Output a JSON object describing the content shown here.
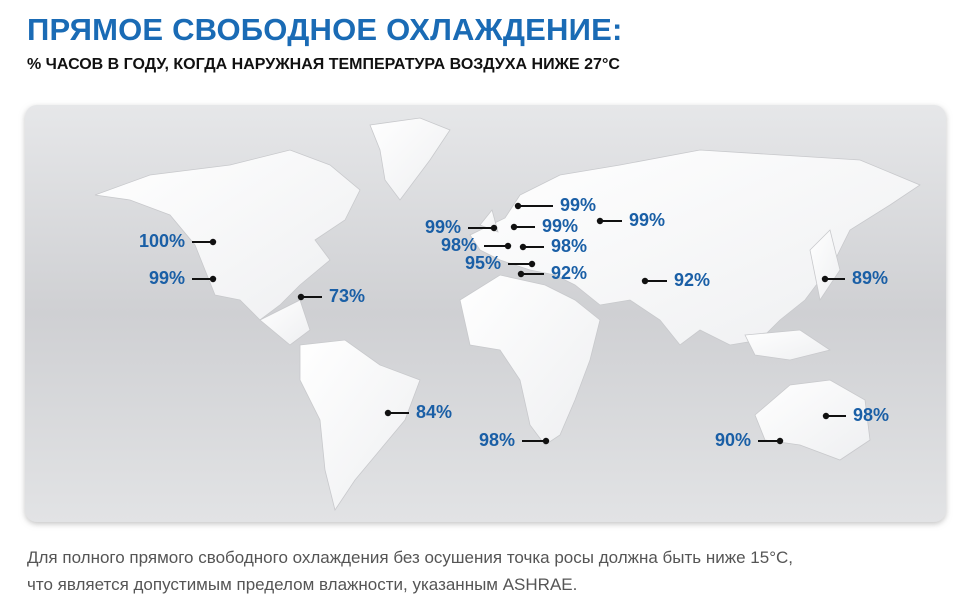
{
  "header": {
    "title": "ПРЯМОЕ СВОБОДНОЕ ОХЛАЖДЕНИЕ:",
    "subtitle": "% ЧАСОВ В ГОДУ, КОГДА НАРУЖНАЯ ТЕМПЕРАТУРА ВОЗДУХА НИЖЕ 27°C"
  },
  "markers": [
    {
      "label": "100%"
    },
    {
      "label": "99%"
    },
    {
      "label": "73%"
    },
    {
      "label": "84%"
    },
    {
      "label": "98%"
    },
    {
      "label": "99%"
    },
    {
      "label": "99%"
    },
    {
      "label": "99%"
    },
    {
      "label": "98%"
    },
    {
      "label": "98%"
    },
    {
      "label": "95%"
    },
    {
      "label": "92%"
    },
    {
      "label": "99%"
    },
    {
      "label": "92%"
    },
    {
      "label": "89%"
    },
    {
      "label": "98%"
    },
    {
      "label": "90%"
    }
  ],
  "footnote": [
    "Для полного прямого свободного охлаждения без осушения точка росы должна быть ниже 15°C,",
    "что является допустимым пределом влажности, указанным ASHRAE."
  ]
}
